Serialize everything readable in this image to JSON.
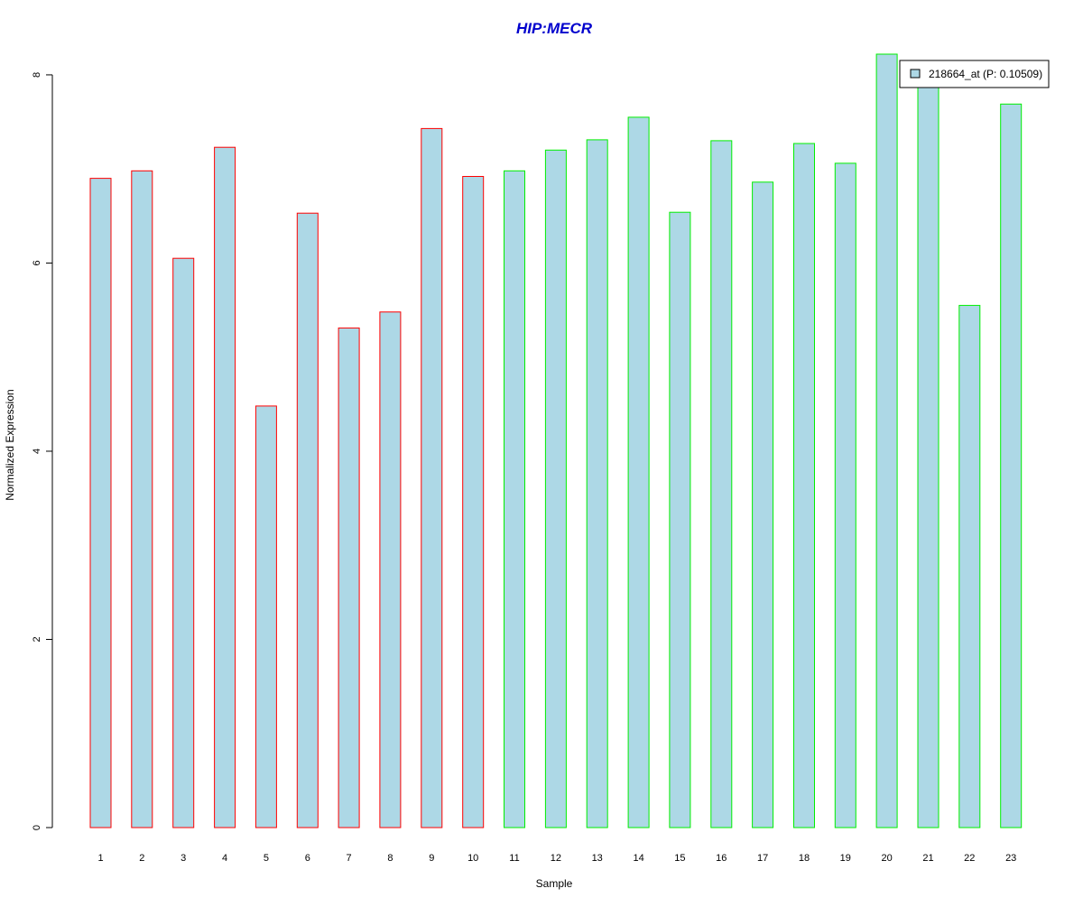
{
  "chart_data": {
    "type": "bar",
    "title": "HIP:MECR",
    "xlabel": "Sample",
    "ylabel": "Normalized Expression",
    "categories": [
      "1",
      "2",
      "3",
      "4",
      "5",
      "6",
      "7",
      "8",
      "9",
      "10",
      "11",
      "12",
      "13",
      "14",
      "15",
      "16",
      "17",
      "18",
      "19",
      "20",
      "21",
      "22",
      "23"
    ],
    "series": [
      {
        "name": "218664_at (P: 0.10509)",
        "values": [
          6.9,
          6.98,
          6.05,
          7.23,
          4.48,
          6.53,
          5.31,
          5.48,
          7.43,
          6.92,
          6.98,
          7.2,
          7.31,
          7.55,
          6.54,
          7.3,
          6.86,
          7.27,
          7.06,
          8.22,
          7.9,
          5.55,
          7.69
        ]
      }
    ],
    "groups": [
      {
        "samples": [
          "1",
          "2",
          "3",
          "4",
          "5",
          "6",
          "7",
          "8",
          "9",
          "10"
        ],
        "border_color": "#ff0000"
      },
      {
        "samples": [
          "11",
          "12",
          "13",
          "14",
          "15",
          "16",
          "17",
          "18",
          "19",
          "20",
          "21",
          "22",
          "23"
        ],
        "border_color": "#00ee00"
      }
    ],
    "ylim": [
      0,
      8.22
    ],
    "yticks": [
      0,
      2,
      4,
      6,
      8
    ],
    "grid": false,
    "legend_position": "top-right",
    "colors": {
      "bar_fill": "#add8e6",
      "title": "#0000cd",
      "axis": "#000000"
    }
  }
}
